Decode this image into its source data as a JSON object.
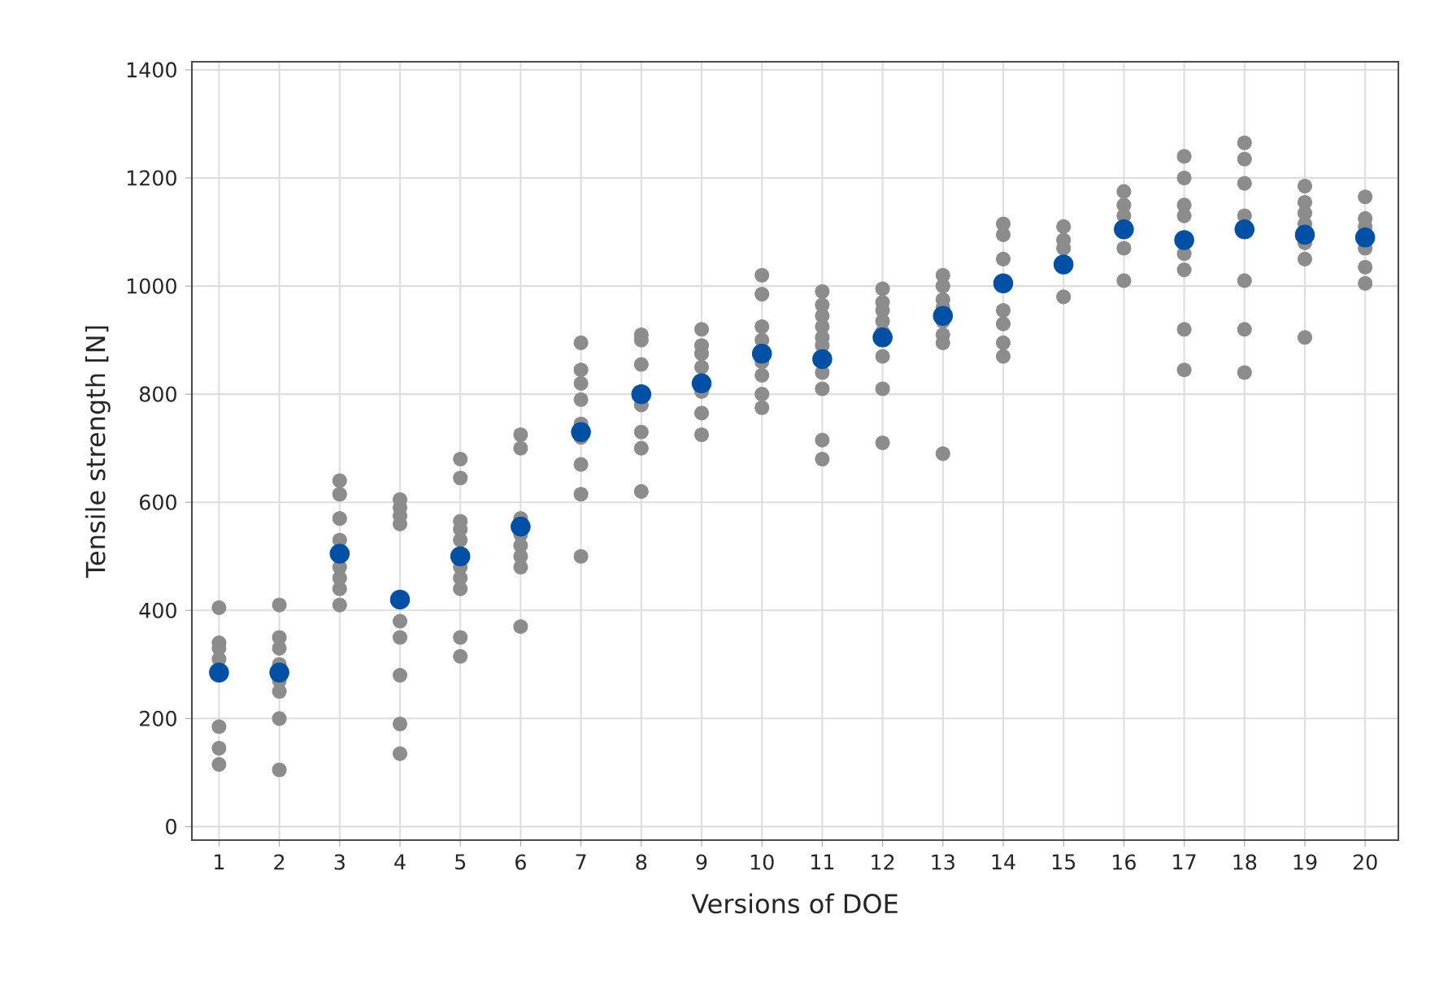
{
  "chart_data": {
    "type": "scatter",
    "xlabel": "Versions of DOE",
    "ylabel": "Tensile strength [N]",
    "xlim": [
      0.55,
      20.55
    ],
    "ylim": [
      -25,
      1415
    ],
    "xticks": [
      1,
      2,
      3,
      4,
      5,
      6,
      7,
      8,
      9,
      10,
      11,
      12,
      13,
      14,
      15,
      16,
      17,
      18,
      19,
      20
    ],
    "yticks": [
      0,
      200,
      400,
      600,
      800,
      1000,
      1200,
      1400
    ],
    "grid": true,
    "series": [
      {
        "color": "#8c8c8c",
        "x": [
          1,
          1,
          1,
          1,
          1,
          1,
          1,
          2,
          2,
          2,
          2,
          2,
          2,
          2,
          2,
          3,
          3,
          3,
          3,
          3,
          3,
          3,
          3,
          4,
          4,
          4,
          4,
          4,
          4,
          4,
          4,
          4,
          5,
          5,
          5,
          5,
          5,
          5,
          5,
          5,
          5,
          5,
          6,
          6,
          6,
          6,
          6,
          6,
          6,
          6,
          7,
          7,
          7,
          7,
          7,
          7,
          7,
          7,
          7,
          8,
          8,
          8,
          8,
          8,
          8,
          8,
          9,
          9,
          9,
          9,
          9,
          9,
          9,
          10,
          10,
          10,
          10,
          10,
          10,
          10,
          10,
          11,
          11,
          11,
          11,
          11,
          11,
          11,
          11,
          11,
          11,
          12,
          12,
          12,
          12,
          12,
          12,
          12,
          12,
          13,
          13,
          13,
          13,
          13,
          13,
          13,
          13,
          14,
          14,
          14,
          14,
          14,
          14,
          14,
          15,
          15,
          15,
          15,
          16,
          16,
          16,
          16,
          16,
          17,
          17,
          17,
          17,
          17,
          17,
          17,
          17,
          18,
          18,
          18,
          18,
          18,
          18,
          18,
          19,
          19,
          19,
          19,
          19,
          19,
          19,
          20,
          20,
          20,
          20,
          20,
          20
        ],
        "values": [
          405,
          340,
          330,
          310,
          185,
          145,
          115,
          410,
          350,
          330,
          300,
          270,
          250,
          200,
          105,
          640,
          615,
          570,
          530,
          480,
          460,
          440,
          410,
          605,
          590,
          575,
          560,
          380,
          350,
          280,
          190,
          135,
          680,
          645,
          565,
          550,
          530,
          480,
          460,
          440,
          350,
          315,
          725,
          700,
          570,
          540,
          520,
          500,
          480,
          370,
          895,
          845,
          820,
          790,
          745,
          720,
          670,
          615,
          500,
          910,
          900,
          855,
          780,
          730,
          700,
          620,
          920,
          890,
          875,
          850,
          805,
          765,
          725,
          1020,
          985,
          925,
          900,
          860,
          835,
          800,
          775,
          990,
          965,
          945,
          925,
          905,
          890,
          840,
          810,
          715,
          680,
          995,
          970,
          955,
          935,
          915,
          870,
          810,
          710,
          1020,
          1000,
          975,
          960,
          935,
          910,
          895,
          690,
          1115,
          1095,
          1050,
          955,
          930,
          895,
          870,
          1110,
          1085,
          1070,
          980,
          1175,
          1150,
          1130,
          1070,
          1010,
          1240,
          1200,
          1150,
          1130,
          1060,
          1030,
          920,
          845,
          1265,
          1235,
          1190,
          1130,
          1010,
          920,
          840,
          1185,
          1155,
          1135,
          1115,
          1080,
          1050,
          905,
          1165,
          1125,
          1110,
          1070,
          1035,
          1005
        ]
      },
      {
        "color": "#0050a5",
        "x": [
          1,
          2,
          3,
          4,
          5,
          6,
          7,
          8,
          9,
          10,
          11,
          12,
          13,
          14,
          15,
          16,
          17,
          18,
          19,
          20
        ],
        "values": [
          285,
          285,
          505,
          420,
          500,
          555,
          730,
          800,
          820,
          875,
          865,
          905,
          945,
          1005,
          1040,
          1105,
          1085,
          1105,
          1095,
          1090
        ]
      }
    ]
  }
}
